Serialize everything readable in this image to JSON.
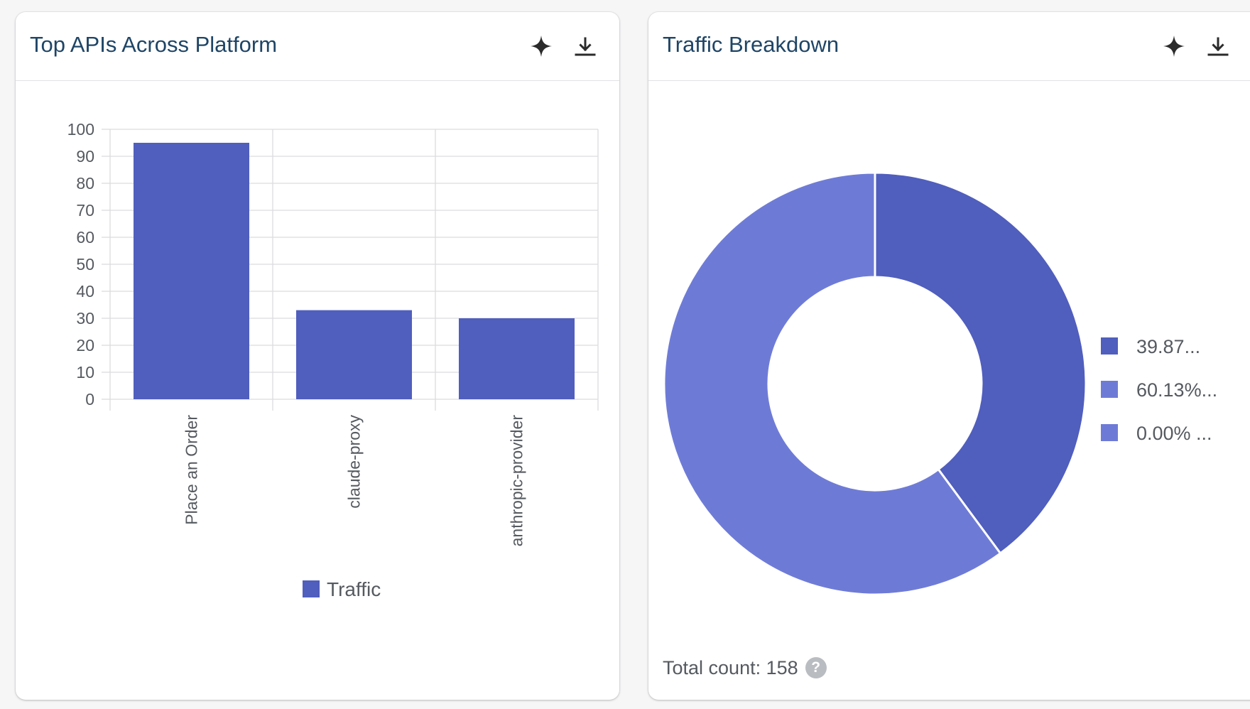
{
  "colors": {
    "series_dark": "#505ebd",
    "series_light": "#6e7bd6",
    "grid": "#dcdcdf",
    "axis_text": "#555a60",
    "title": "#1f4566"
  },
  "icons": {
    "sparkle": "sparkle-icon",
    "download": "download-icon"
  },
  "cards": {
    "top_apis": {
      "title": "Top APIs Across Platform"
    },
    "traffic_breakdown": {
      "title": "Traffic Breakdown",
      "total_label": "Total count: 158",
      "help_glyph": "?"
    }
  },
  "chart_data": [
    {
      "type": "bar",
      "title": "Top APIs Across Platform",
      "categories": [
        "Place an Order",
        "claude-proxy",
        "anthropic-provider"
      ],
      "series": [
        {
          "name": "Traffic",
          "values": [
            95,
            33,
            30
          ],
          "color": "#505ebd"
        }
      ],
      "ylim": [
        0,
        100
      ],
      "yticks": [
        0,
        10,
        20,
        30,
        40,
        50,
        60,
        70,
        80,
        90,
        100
      ],
      "xlabel": "",
      "ylabel": "",
      "grid": true,
      "legend": "bottom-center"
    },
    {
      "type": "pie",
      "variant": "donut",
      "title": "Traffic Breakdown",
      "values": [
        39.87,
        60.13,
        0.0
      ],
      "labels": [
        "39.87...",
        "60.13%...",
        "0.00% ..."
      ],
      "colors": [
        "#505ebd",
        "#6e7bd6",
        "#6e7bd6"
      ],
      "total": 158,
      "legend": "right"
    }
  ]
}
